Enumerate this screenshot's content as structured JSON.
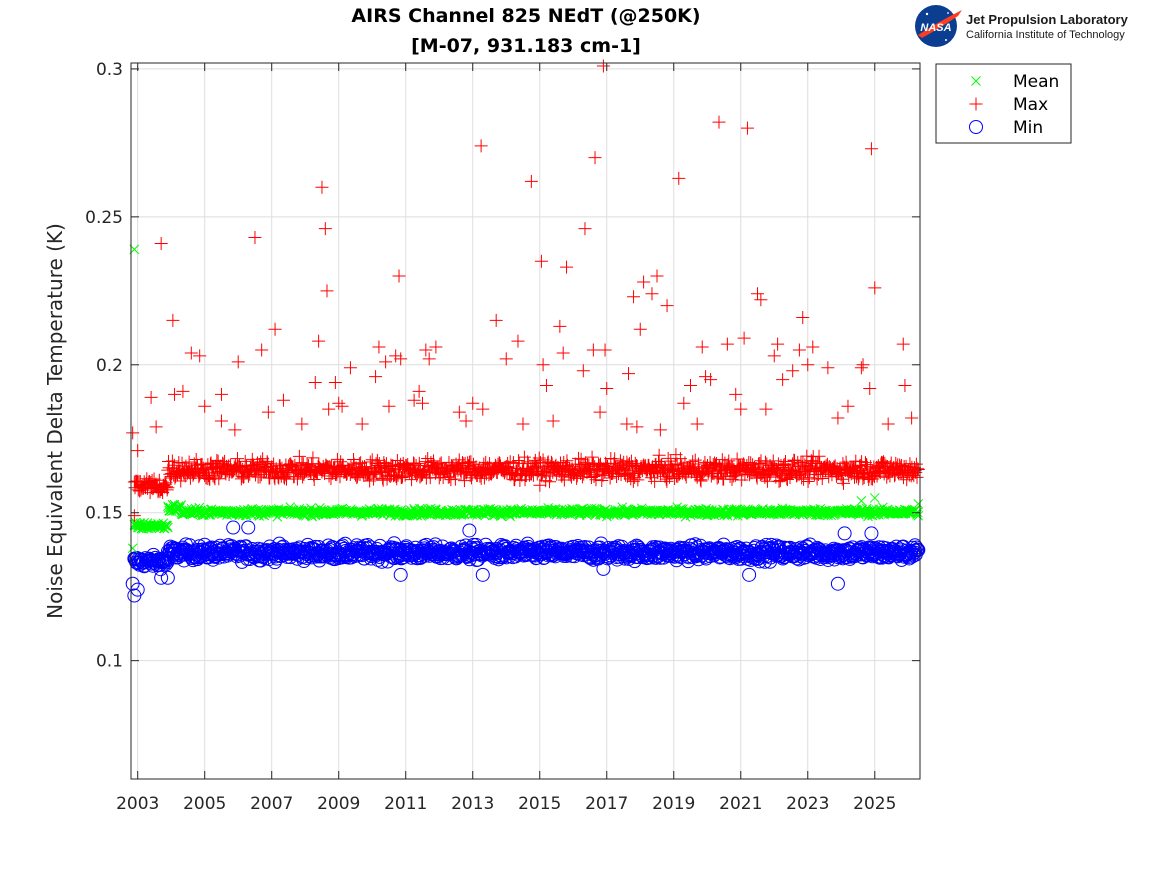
{
  "header": {
    "title_line1": "AIRS Channel 825 NEdT (@250K)",
    "title_line2": "[M-07, 931.183 cm-1]"
  },
  "logo": {
    "nasa_text": "NASA",
    "org_name": "Jet Propulsion Laboratory",
    "org_sub": "California Institute of Technology"
  },
  "chart_data": {
    "type": "scatter",
    "title": "AIRS Channel 825 NEdT (@250K)",
    "subtitle": "[M-07, 931.183 cm-1]",
    "xlabel": "",
    "ylabel": "Noise Equivalent Delta Temperature (K)",
    "xlim": [
      2002.8,
      2026.35
    ],
    "ylim": [
      0.06,
      0.302
    ],
    "xticks": [
      "2003",
      "2005",
      "2007",
      "2009",
      "2011",
      "2013",
      "2015",
      "2017",
      "2019",
      "2021",
      "2023",
      "2025"
    ],
    "xtick_values": [
      2003,
      2005,
      2007,
      2009,
      2011,
      2013,
      2015,
      2017,
      2019,
      2021,
      2023,
      2025
    ],
    "yticks": [
      "0.1",
      "0.15",
      "0.2",
      "0.25",
      "0.3"
    ],
    "ytick_values": [
      0.1,
      0.15,
      0.2,
      0.25,
      0.3
    ],
    "grid": true,
    "legend_position": "top-right-outside",
    "series": [
      {
        "name": "Mean",
        "marker": "x",
        "color": "#00ff00",
        "bands": [
          {
            "x_start": 2002.9,
            "x_end": 2003.9,
            "center": 0.1455,
            "spread": 0.0012
          },
          {
            "x_start": 2003.9,
            "x_end": 2004.3,
            "center": 0.1515,
            "spread": 0.0015
          },
          {
            "x_start": 2004.3,
            "x_end": 2026.3,
            "center": 0.1502,
            "spread": 0.0012
          }
        ],
        "outliers": [
          {
            "x": 2002.9,
            "y": 0.239
          },
          {
            "x": 2002.85,
            "y": 0.138
          },
          {
            "x": 2026.3,
            "y": 0.153
          },
          {
            "x": 2024.6,
            "y": 0.154
          },
          {
            "x": 2025.0,
            "y": 0.155
          }
        ]
      },
      {
        "name": "Max",
        "marker": "+",
        "color": "#ff0000",
        "bands": [
          {
            "x_start": 2002.9,
            "x_end": 2003.9,
            "center": 0.159,
            "spread": 0.003
          },
          {
            "x_start": 2003.9,
            "x_end": 2026.3,
            "center": 0.1645,
            "spread": 0.0035
          }
        ],
        "outliers": [
          {
            "x": 2002.85,
            "y": 0.177
          },
          {
            "x": 2002.9,
            "y": 0.149
          },
          {
            "x": 2003.0,
            "y": 0.171
          },
          {
            "x": 2003.4,
            "y": 0.189
          },
          {
            "x": 2003.7,
            "y": 0.241
          },
          {
            "x": 2003.55,
            "y": 0.179
          },
          {
            "x": 2004.05,
            "y": 0.215
          },
          {
            "x": 2004.1,
            "y": 0.19
          },
          {
            "x": 2004.35,
            "y": 0.191
          },
          {
            "x": 2004.6,
            "y": 0.204
          },
          {
            "x": 2004.85,
            "y": 0.203
          },
          {
            "x": 2005.0,
            "y": 0.186
          },
          {
            "x": 2005.5,
            "y": 0.181
          },
          {
            "x": 2005.5,
            "y": 0.19
          },
          {
            "x": 2005.9,
            "y": 0.178
          },
          {
            "x": 2006.0,
            "y": 0.201
          },
          {
            "x": 2006.5,
            "y": 0.243
          },
          {
            "x": 2006.7,
            "y": 0.205
          },
          {
            "x": 2006.9,
            "y": 0.184
          },
          {
            "x": 2007.1,
            "y": 0.212
          },
          {
            "x": 2007.35,
            "y": 0.188
          },
          {
            "x": 2007.9,
            "y": 0.18
          },
          {
            "x": 2008.3,
            "y": 0.194
          },
          {
            "x": 2008.4,
            "y": 0.208
          },
          {
            "x": 2008.5,
            "y": 0.26
          },
          {
            "x": 2008.6,
            "y": 0.246
          },
          {
            "x": 2008.65,
            "y": 0.225
          },
          {
            "x": 2008.7,
            "y": 0.185
          },
          {
            "x": 2008.9,
            "y": 0.194
          },
          {
            "x": 2009.0,
            "y": 0.187
          },
          {
            "x": 2009.1,
            "y": 0.186
          },
          {
            "x": 2009.35,
            "y": 0.199
          },
          {
            "x": 2009.7,
            "y": 0.18
          },
          {
            "x": 2010.1,
            "y": 0.196
          },
          {
            "x": 2010.2,
            "y": 0.206
          },
          {
            "x": 2010.4,
            "y": 0.201
          },
          {
            "x": 2010.5,
            "y": 0.186
          },
          {
            "x": 2010.7,
            "y": 0.203
          },
          {
            "x": 2010.8,
            "y": 0.23
          },
          {
            "x": 2010.85,
            "y": 0.202
          },
          {
            "x": 2011.25,
            "y": 0.188
          },
          {
            "x": 2011.4,
            "y": 0.191
          },
          {
            "x": 2011.5,
            "y": 0.187
          },
          {
            "x": 2011.6,
            "y": 0.205
          },
          {
            "x": 2011.7,
            "y": 0.202
          },
          {
            "x": 2011.9,
            "y": 0.206
          },
          {
            "x": 2012.6,
            "y": 0.184
          },
          {
            "x": 2012.8,
            "y": 0.181
          },
          {
            "x": 2013.0,
            "y": 0.187
          },
          {
            "x": 2013.25,
            "y": 0.274
          },
          {
            "x": 2013.3,
            "y": 0.185
          },
          {
            "x": 2013.7,
            "y": 0.215
          },
          {
            "x": 2014.0,
            "y": 0.202
          },
          {
            "x": 2014.35,
            "y": 0.208
          },
          {
            "x": 2014.5,
            "y": 0.18
          },
          {
            "x": 2014.75,
            "y": 0.262
          },
          {
            "x": 2015.05,
            "y": 0.235
          },
          {
            "x": 2015.1,
            "y": 0.2
          },
          {
            "x": 2015.2,
            "y": 0.193
          },
          {
            "x": 2015.4,
            "y": 0.181
          },
          {
            "x": 2015.6,
            "y": 0.213
          },
          {
            "x": 2015.7,
            "y": 0.204
          },
          {
            "x": 2015.8,
            "y": 0.233
          },
          {
            "x": 2016.3,
            "y": 0.198
          },
          {
            "x": 2016.35,
            "y": 0.246
          },
          {
            "x": 2016.6,
            "y": 0.205
          },
          {
            "x": 2016.65,
            "y": 0.27
          },
          {
            "x": 2016.8,
            "y": 0.184
          },
          {
            "x": 2016.9,
            "y": 0.301
          },
          {
            "x": 2016.95,
            "y": 0.205
          },
          {
            "x": 2017.0,
            "y": 0.192
          },
          {
            "x": 2017.6,
            "y": 0.18
          },
          {
            "x": 2017.65,
            "y": 0.197
          },
          {
            "x": 2017.8,
            "y": 0.223
          },
          {
            "x": 2017.9,
            "y": 0.179
          },
          {
            "x": 2018.0,
            "y": 0.212
          },
          {
            "x": 2018.1,
            "y": 0.228
          },
          {
            "x": 2018.35,
            "y": 0.224
          },
          {
            "x": 2018.5,
            "y": 0.23
          },
          {
            "x": 2018.6,
            "y": 0.178
          },
          {
            "x": 2018.8,
            "y": 0.22
          },
          {
            "x": 2019.15,
            "y": 0.263
          },
          {
            "x": 2019.3,
            "y": 0.187
          },
          {
            "x": 2019.5,
            "y": 0.193
          },
          {
            "x": 2019.7,
            "y": 0.18
          },
          {
            "x": 2019.85,
            "y": 0.206
          },
          {
            "x": 2019.95,
            "y": 0.196
          },
          {
            "x": 2020.1,
            "y": 0.195
          },
          {
            "x": 2020.35,
            "y": 0.282
          },
          {
            "x": 2020.6,
            "y": 0.207
          },
          {
            "x": 2020.85,
            "y": 0.19
          },
          {
            "x": 2021.0,
            "y": 0.185
          },
          {
            "x": 2021.1,
            "y": 0.209
          },
          {
            "x": 2021.2,
            "y": 0.28
          },
          {
            "x": 2021.5,
            "y": 0.224
          },
          {
            "x": 2021.6,
            "y": 0.222
          },
          {
            "x": 2021.75,
            "y": 0.185
          },
          {
            "x": 2022.0,
            "y": 0.203
          },
          {
            "x": 2022.1,
            "y": 0.207
          },
          {
            "x": 2022.25,
            "y": 0.195
          },
          {
            "x": 2022.55,
            "y": 0.198
          },
          {
            "x": 2022.75,
            "y": 0.205
          },
          {
            "x": 2022.85,
            "y": 0.216
          },
          {
            "x": 2023.0,
            "y": 0.2
          },
          {
            "x": 2023.15,
            "y": 0.206
          },
          {
            "x": 2023.6,
            "y": 0.199
          },
          {
            "x": 2023.9,
            "y": 0.182
          },
          {
            "x": 2024.2,
            "y": 0.186
          },
          {
            "x": 2024.6,
            "y": 0.199
          },
          {
            "x": 2024.65,
            "y": 0.2
          },
          {
            "x": 2024.85,
            "y": 0.192
          },
          {
            "x": 2024.9,
            "y": 0.273
          },
          {
            "x": 2025.0,
            "y": 0.226
          },
          {
            "x": 2025.4,
            "y": 0.18
          },
          {
            "x": 2025.85,
            "y": 0.207
          },
          {
            "x": 2025.9,
            "y": 0.193
          },
          {
            "x": 2026.1,
            "y": 0.182
          }
        ]
      },
      {
        "name": "Min",
        "marker": "o",
        "color": "#0000ff",
        "bands": [
          {
            "x_start": 2002.9,
            "x_end": 2003.9,
            "center": 0.1335,
            "spread": 0.002
          },
          {
            "x_start": 2003.9,
            "x_end": 2026.3,
            "center": 0.1365,
            "spread": 0.0025
          }
        ],
        "outliers": [
          {
            "x": 2002.85,
            "y": 0.126
          },
          {
            "x": 2002.9,
            "y": 0.122
          },
          {
            "x": 2003.0,
            "y": 0.124
          },
          {
            "x": 2003.7,
            "y": 0.128
          },
          {
            "x": 2003.9,
            "y": 0.128
          },
          {
            "x": 2005.85,
            "y": 0.145
          },
          {
            "x": 2006.3,
            "y": 0.145
          },
          {
            "x": 2010.85,
            "y": 0.129
          },
          {
            "x": 2012.9,
            "y": 0.144
          },
          {
            "x": 2013.3,
            "y": 0.129
          },
          {
            "x": 2016.9,
            "y": 0.131
          },
          {
            "x": 2021.25,
            "y": 0.129
          },
          {
            "x": 2023.9,
            "y": 0.126
          },
          {
            "x": 2024.1,
            "y": 0.143
          },
          {
            "x": 2024.9,
            "y": 0.143
          },
          {
            "x": 2026.2,
            "y": 0.139
          }
        ]
      }
    ]
  }
}
